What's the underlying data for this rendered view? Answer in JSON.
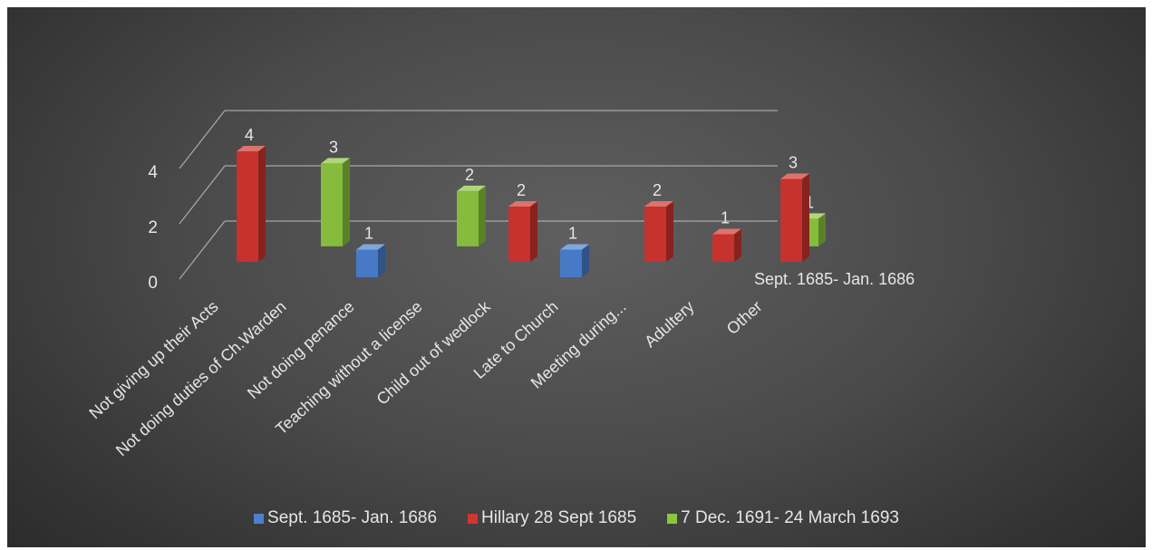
{
  "chart_data": {
    "type": "bar",
    "categories": [
      "Not giving up their Acts",
      "Not doing duties of Ch.Warden",
      "Not doing penance",
      "Teaching without a license",
      "Child out of wedlock",
      "Late to Church",
      "Meeting during...",
      "Adultery",
      "Other"
    ],
    "series": [
      {
        "name": "Sept. 1685- Jan. 1686",
        "values": [
          null,
          null,
          1,
          null,
          null,
          1,
          null,
          null,
          null
        ],
        "color": "#4a80d0"
      },
      {
        "name": "Hillary 28 Sept 1685",
        "values": [
          4,
          null,
          null,
          null,
          2,
          null,
          2,
          1,
          3
        ],
        "color": "#d03530"
      },
      {
        "name": "7 Dec. 1691- 24 March 1693",
        "values": [
          null,
          3,
          null,
          2,
          null,
          null,
          null,
          null,
          1
        ],
        "color": "#8cc63e"
      }
    ],
    "yticks": [
      "0",
      "2",
      "4"
    ],
    "ylim": [
      0,
      4
    ],
    "depth_axis_label": "Sept. 1685- Jan. 1686",
    "grid": true,
    "legend_position": "bottom"
  }
}
